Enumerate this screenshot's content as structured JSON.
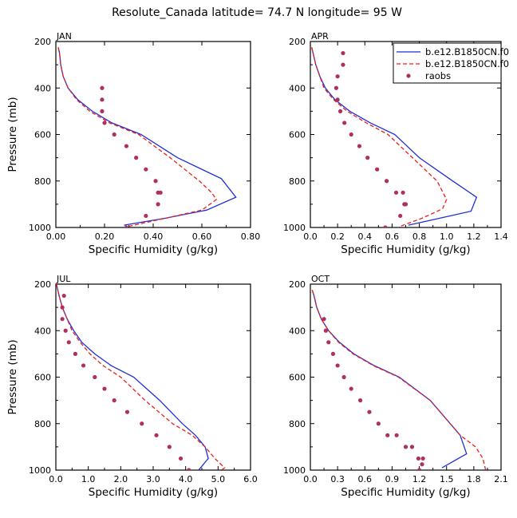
{
  "title": "Resolute_Canada  latitude= 74.7 N longitude= 95 W",
  "legend": {
    "entries": [
      "b.e12.B1850CN.f0",
      "b.e12.B1850CN.f0",
      "raobs"
    ],
    "placement": "top-right of APR panel"
  },
  "colors": {
    "model_a": "#1f2fd6",
    "model_b": "#e8201a",
    "raobs": "#b0305a",
    "axes": "#000000"
  },
  "chart_data": [
    {
      "type": "line",
      "panel": "JAN",
      "xlabel": "Specific Humidity (g/kg)",
      "ylabel": "Pressure (mb)",
      "xlim": [
        0,
        0.8
      ],
      "ylim": [
        1000,
        200
      ],
      "xticks": [
        "0.00",
        "0.20",
        "0.40",
        "0.60",
        "0.80"
      ],
      "yticks": [
        "200",
        "400",
        "600",
        "800",
        "1000"
      ],
      "series": [
        {
          "name": "b.e12.B1850CN.f0",
          "style": "solid",
          "x": [
            0.01,
            0.015,
            0.02,
            0.03,
            0.05,
            0.09,
            0.15,
            0.23,
            0.35,
            0.5,
            0.68,
            0.74,
            0.62,
            0.45,
            0.28
          ],
          "y": [
            225,
            250,
            300,
            350,
            400,
            450,
            500,
            550,
            600,
            700,
            790,
            870,
            925,
            960,
            990
          ]
        },
        {
          "name": "b.e12.B1850CN.f0",
          "style": "dashed",
          "x": [
            0.01,
            0.015,
            0.02,
            0.03,
            0.05,
            0.085,
            0.14,
            0.22,
            0.34,
            0.47,
            0.59,
            0.64,
            0.66,
            0.6,
            0.45,
            0.3
          ],
          "y": [
            225,
            250,
            300,
            350,
            400,
            450,
            500,
            550,
            600,
            700,
            800,
            850,
            880,
            925,
            960,
            995
          ]
        },
        {
          "name": "raobs",
          "style": "dots",
          "x": [
            0.19,
            0.19,
            0.19,
            0.2,
            0.24,
            0.29,
            0.33,
            0.37,
            0.41,
            0.42,
            0.43,
            0.42,
            0.37,
            0.29
          ],
          "y": [
            400,
            450,
            500,
            550,
            600,
            650,
            700,
            750,
            800,
            850,
            850,
            900,
            950,
            1000
          ]
        }
      ]
    },
    {
      "type": "line",
      "panel": "APR",
      "xlabel": "Specific Humidity (g/kg)",
      "ylabel": "",
      "xlim": [
        0,
        1.4
      ],
      "ylim": [
        1000,
        200
      ],
      "xticks": [
        "0.0",
        "0.2",
        "0.4",
        "0.6",
        "0.8",
        "1.0",
        "1.2",
        "1.4"
      ],
      "yticks": [
        "200",
        "400",
        "600",
        "800",
        "1000"
      ],
      "series": [
        {
          "name": "b.e12.B1850CN.f0",
          "style": "solid",
          "x": [
            0.01,
            0.02,
            0.04,
            0.07,
            0.11,
            0.18,
            0.29,
            0.44,
            0.62,
            0.8,
            1.02,
            1.22,
            1.18,
            0.95,
            0.72
          ],
          "y": [
            225,
            250,
            300,
            350,
            400,
            450,
            500,
            550,
            600,
            700,
            790,
            870,
            930,
            960,
            990
          ]
        },
        {
          "name": "b.e12.B1850CN.f0",
          "style": "dashed",
          "x": [
            0.01,
            0.02,
            0.04,
            0.07,
            0.1,
            0.17,
            0.27,
            0.41,
            0.57,
            0.75,
            0.93,
            1.0,
            0.97,
            0.82,
            0.66
          ],
          "y": [
            225,
            250,
            300,
            350,
            400,
            450,
            500,
            550,
            600,
            700,
            800,
            880,
            920,
            960,
            995
          ]
        },
        {
          "name": "raobs",
          "style": "dots",
          "x": [
            0.24,
            0.24,
            0.2,
            0.19,
            0.2,
            0.22,
            0.25,
            0.3,
            0.36,
            0.42,
            0.49,
            0.56,
            0.63,
            0.68,
            0.7,
            0.69,
            0.66,
            0.55
          ],
          "y": [
            250,
            300,
            350,
            400,
            450,
            500,
            550,
            600,
            650,
            700,
            750,
            800,
            850,
            850,
            900,
            900,
            950,
            1000
          ]
        }
      ]
    },
    {
      "type": "line",
      "panel": "JUL",
      "xlabel": "Specific Humidity (g/kg)",
      "ylabel": "Pressure (mb)",
      "xlim": [
        0,
        6
      ],
      "ylim": [
        1000,
        200
      ],
      "xticks": [
        "0.0",
        "1.0",
        "2.0",
        "3.0",
        "4.0",
        "5.0",
        "6.0"
      ],
      "yticks": [
        "200",
        "400",
        "600",
        "800",
        "1000"
      ],
      "series": [
        {
          "name": "b.e12.B1850CN.f0",
          "style": "solid",
          "x": [
            0.02,
            0.1,
            0.2,
            0.35,
            0.55,
            0.8,
            1.2,
            1.7,
            2.4,
            3.2,
            3.9,
            4.3,
            4.6,
            4.7,
            4.4
          ],
          "y": [
            200,
            250,
            300,
            350,
            400,
            450,
            500,
            550,
            600,
            700,
            800,
            850,
            900,
            950,
            1000
          ]
        },
        {
          "name": "b.e12.B1850CN.f0",
          "style": "dashed",
          "x": [
            0.02,
            0.1,
            0.2,
            0.35,
            0.5,
            0.75,
            1.05,
            1.45,
            2.0,
            2.75,
            3.6,
            4.2,
            4.6,
            4.9,
            5.2,
            5.1
          ],
          "y": [
            200,
            250,
            300,
            350,
            400,
            450,
            500,
            550,
            600,
            700,
            800,
            850,
            900,
            950,
            990,
            1000
          ]
        },
        {
          "name": "raobs",
          "style": "dots",
          "x": [
            0.25,
            0.2,
            0.2,
            0.3,
            0.4,
            0.6,
            0.85,
            1.2,
            1.5,
            1.8,
            2.2,
            2.65,
            3.1,
            3.5,
            3.85,
            4.1
          ],
          "y": [
            250,
            300,
            350,
            400,
            450,
            500,
            550,
            600,
            650,
            700,
            750,
            800,
            850,
            900,
            950,
            1000
          ]
        }
      ]
    },
    {
      "type": "line",
      "panel": "OCT",
      "xlabel": "Specific Humidity (g/kg)",
      "ylabel": "",
      "xlim": [
        0,
        2.1
      ],
      "ylim": [
        1000,
        200
      ],
      "xticks": [
        "0.0",
        "0.3",
        "0.6",
        "0.9",
        "1.2",
        "1.5",
        "1.8",
        "2.1"
      ],
      "yticks": [
        "200",
        "400",
        "600",
        "800",
        "1000"
      ],
      "series": [
        {
          "name": "b.e12.B1850CN.f0",
          "style": "solid",
          "x": [
            0.02,
            0.04,
            0.07,
            0.12,
            0.2,
            0.32,
            0.48,
            0.7,
            0.98,
            1.32,
            1.65,
            1.72,
            1.45
          ],
          "y": [
            225,
            250,
            300,
            350,
            400,
            450,
            500,
            550,
            600,
            700,
            850,
            930,
            990
          ]
        },
        {
          "name": "b.e12.B1850CN.f0",
          "style": "dashed",
          "x": [
            0.02,
            0.04,
            0.07,
            0.12,
            0.2,
            0.31,
            0.47,
            0.69,
            0.97,
            1.32,
            1.65,
            1.82,
            1.9,
            1.93
          ],
          "y": [
            225,
            250,
            300,
            350,
            400,
            450,
            500,
            550,
            600,
            700,
            850,
            900,
            950,
            1000
          ]
        },
        {
          "name": "raobs",
          "style": "dots",
          "x": [
            0.15,
            0.17,
            0.2,
            0.25,
            0.3,
            0.37,
            0.45,
            0.55,
            0.65,
            0.75,
            0.85,
            0.95,
            1.05,
            1.12,
            1.19,
            1.24,
            1.23,
            1.2
          ],
          "y": [
            350,
            400,
            450,
            500,
            550,
            600,
            650,
            700,
            750,
            800,
            850,
            850,
            900,
            900,
            950,
            950,
            975,
            1000
          ]
        }
      ]
    }
  ]
}
